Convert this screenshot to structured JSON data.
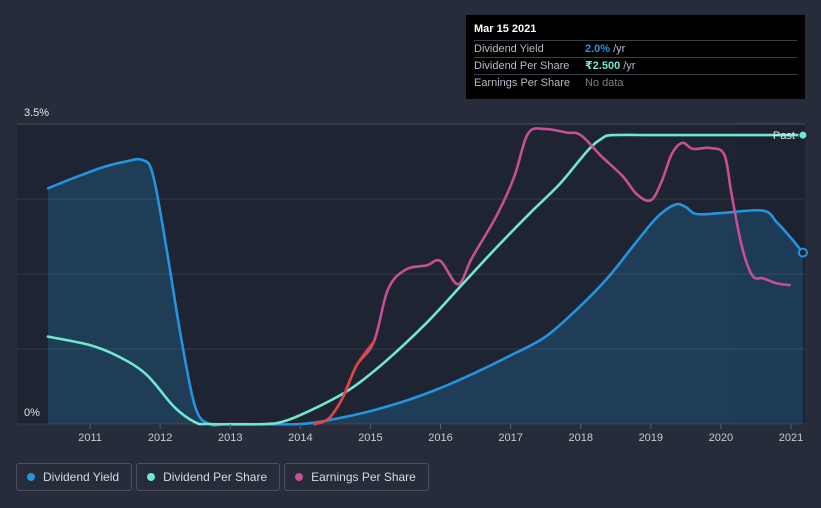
{
  "tooltip": {
    "date": "Mar 15 2021",
    "rows": [
      {
        "label": "Dividend Yield",
        "value": "2.0%",
        "unit": "/yr",
        "color": "#2394df"
      },
      {
        "label": "Dividend Per Share",
        "value": "₹2.500",
        "unit": "/yr",
        "color": "#6fe8cf"
      },
      {
        "label": "Earnings Per Share",
        "value": "",
        "unit": "No data",
        "color": "#7d828c"
      }
    ]
  },
  "past_label": "Past",
  "legend": [
    {
      "label": "Dividend Yield",
      "color": "#2394df"
    },
    {
      "label": "Dividend Per Share",
      "color": "#6fe8cf"
    },
    {
      "label": "Earnings Per Share",
      "color": "#c64f96"
    }
  ],
  "chart_data": {
    "type": "line",
    "x_ticks": [
      "2011",
      "2012",
      "2013",
      "2014",
      "2015",
      "2016",
      "2017",
      "2018",
      "2019",
      "2020",
      "2021"
    ],
    "y_ticks": [
      "0%",
      "3.5%"
    ],
    "ylim": [
      0,
      3.5
    ],
    "xlim": [
      2010.4,
      2021.2
    ],
    "grid": true,
    "legend_position": "bottom-left",
    "series": [
      {
        "name": "Dividend Yield",
        "color": "#2394df",
        "area": true,
        "points": [
          [
            2010.4,
            2.75
          ],
          [
            2010.8,
            2.88
          ],
          [
            2011.2,
            3.0
          ],
          [
            2011.5,
            3.06
          ],
          [
            2011.75,
            3.08
          ],
          [
            2011.9,
            2.9
          ],
          [
            2012.1,
            2.0
          ],
          [
            2012.3,
            1.0
          ],
          [
            2012.5,
            0.2
          ],
          [
            2012.7,
            0.0
          ],
          [
            2013.0,
            0.0
          ],
          [
            2014.0,
            0.0
          ],
          [
            2014.5,
            0.06
          ],
          [
            2015.0,
            0.15
          ],
          [
            2015.5,
            0.27
          ],
          [
            2016.0,
            0.42
          ],
          [
            2016.5,
            0.6
          ],
          [
            2017.0,
            0.8
          ],
          [
            2017.5,
            1.02
          ],
          [
            2018.0,
            1.38
          ],
          [
            2018.4,
            1.72
          ],
          [
            2018.8,
            2.13
          ],
          [
            2019.1,
            2.42
          ],
          [
            2019.35,
            2.56
          ],
          [
            2019.5,
            2.53
          ],
          [
            2019.65,
            2.45
          ],
          [
            2020.0,
            2.46
          ],
          [
            2020.6,
            2.49
          ],
          [
            2020.8,
            2.35
          ],
          [
            2021.0,
            2.17
          ],
          [
            2021.17,
            2.0
          ]
        ]
      },
      {
        "name": "Dividend Per Share",
        "color": "#6fe8cf",
        "area": false,
        "points": [
          [
            2010.4,
            1.02
          ],
          [
            2011.0,
            0.92
          ],
          [
            2011.4,
            0.79
          ],
          [
            2011.8,
            0.58
          ],
          [
            2012.2,
            0.2
          ],
          [
            2012.5,
            0.02
          ],
          [
            2012.7,
            0.0
          ],
          [
            2013.5,
            0.0
          ],
          [
            2013.8,
            0.04
          ],
          [
            2014.2,
            0.18
          ],
          [
            2014.7,
            0.4
          ],
          [
            2015.2,
            0.72
          ],
          [
            2015.8,
            1.18
          ],
          [
            2016.3,
            1.62
          ],
          [
            2016.8,
            2.06
          ],
          [
            2017.3,
            2.48
          ],
          [
            2017.7,
            2.8
          ],
          [
            2018.1,
            3.19
          ],
          [
            2018.3,
            3.33
          ],
          [
            2018.45,
            3.37
          ],
          [
            2019.0,
            3.37
          ],
          [
            2020.0,
            3.37
          ],
          [
            2021.17,
            3.37
          ]
        ]
      },
      {
        "name": "Earnings Per Share",
        "color": "#c64f96",
        "area": false,
        "points": [
          [
            2014.2,
            0.0
          ],
          [
            2014.4,
            0.06
          ],
          [
            2014.6,
            0.3
          ],
          [
            2014.8,
            0.68
          ],
          [
            2015.05,
            0.96
          ],
          [
            2015.25,
            1.57
          ],
          [
            2015.5,
            1.8
          ],
          [
            2015.8,
            1.85
          ],
          [
            2016.0,
            1.9
          ],
          [
            2016.25,
            1.63
          ],
          [
            2016.45,
            1.94
          ],
          [
            2016.8,
            2.43
          ],
          [
            2017.05,
            2.88
          ],
          [
            2017.25,
            3.39
          ],
          [
            2017.5,
            3.44
          ],
          [
            2017.8,
            3.4
          ],
          [
            2018.0,
            3.37
          ],
          [
            2018.3,
            3.12
          ],
          [
            2018.6,
            2.89
          ],
          [
            2018.8,
            2.68
          ],
          [
            2019.0,
            2.61
          ],
          [
            2019.15,
            2.82
          ],
          [
            2019.3,
            3.15
          ],
          [
            2019.45,
            3.28
          ],
          [
            2019.6,
            3.21
          ],
          [
            2019.85,
            3.22
          ],
          [
            2020.05,
            3.14
          ],
          [
            2020.15,
            2.69
          ],
          [
            2020.3,
            2.07
          ],
          [
            2020.45,
            1.73
          ],
          [
            2020.6,
            1.7
          ],
          [
            2020.8,
            1.64
          ],
          [
            2020.98,
            1.62
          ]
        ]
      }
    ]
  }
}
